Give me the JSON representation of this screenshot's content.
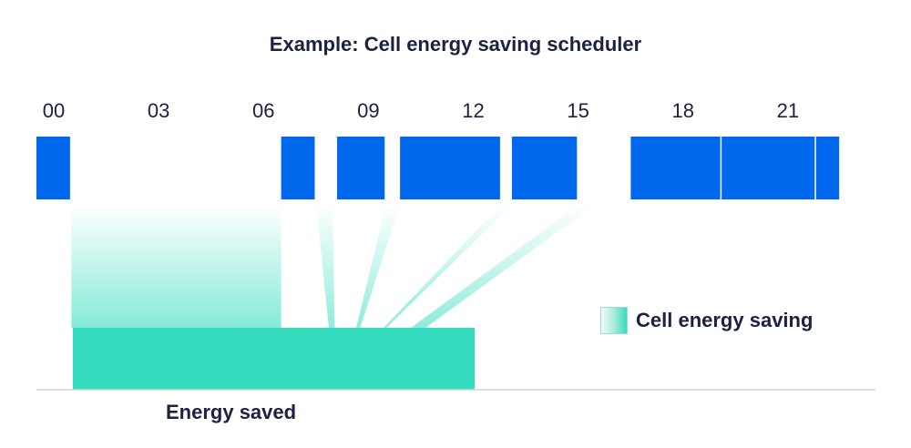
{
  "title": "Example: Cell energy saving scheduler",
  "hour_axis": {
    "ticks": [
      "00",
      "03",
      "06",
      "09",
      "12",
      "15",
      "18",
      "21"
    ],
    "tick_hours": [
      0,
      3,
      6,
      9,
      12,
      15,
      18,
      21
    ],
    "range_hours": [
      0,
      24
    ]
  },
  "active_blocks_hours": [
    [
      0,
      1
    ],
    [
      7,
      8
    ],
    [
      8.6,
      10
    ],
    [
      10.4,
      13.3
    ],
    [
      13.6,
      15.5
    ],
    [
      17,
      19.6
    ],
    [
      19.6,
      22.3
    ],
    [
      22.3,
      23
    ]
  ],
  "legend": {
    "label": "Cell energy saving"
  },
  "energy_saved_label": "Energy saved",
  "colors": {
    "active_block": "#0068ec",
    "energy_saving": "#34dcbd",
    "text": "#1b2141",
    "baseline": "#cfd3da"
  }
}
